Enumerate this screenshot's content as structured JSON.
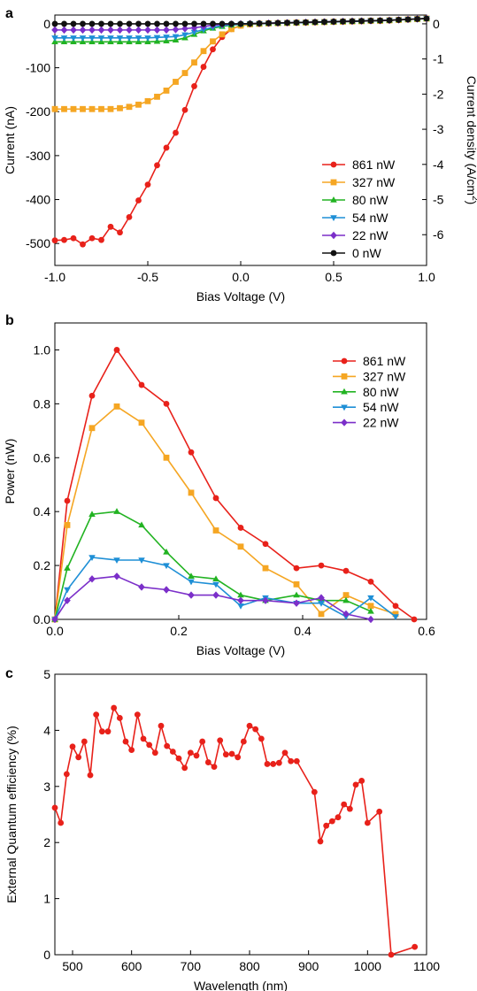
{
  "chart_data": [
    {
      "panel": "a",
      "type": "line",
      "xlabel": "Bias Voltage (V)",
      "ylabel": "Current (nA)",
      "y2label_main": "Current density (A/cm",
      "y2label_sup": "2",
      "y2label_end": ")",
      "xlim": [
        -1.0,
        1.0
      ],
      "ylim": [
        -550,
        20
      ],
      "xticks": [
        -1.0,
        -0.5,
        0.0,
        0.5,
        1.0
      ],
      "xtick_labels": [
        "-1.0",
        "-0.5",
        "0.0",
        "0.5",
        "1.0"
      ],
      "yticks": [
        0,
        -100,
        -200,
        -300,
        -400,
        -500
      ],
      "ytick_labels": [
        "0",
        "-100",
        "-200",
        "-300",
        "-400",
        "-500"
      ],
      "y2ticks": [
        0,
        -1,
        -2,
        -3,
        -4,
        -5,
        -6
      ],
      "y2tick_labels": [
        "0",
        "-1",
        "-2",
        "-3",
        "-4",
        "-5",
        "-6"
      ],
      "y2_scale_nA_per_unit": 80,
      "legend_position": "bottom-right",
      "x": [
        -1.0,
        -0.95,
        -0.9,
        -0.85,
        -0.8,
        -0.75,
        -0.7,
        -0.65,
        -0.6,
        -0.55,
        -0.5,
        -0.45,
        -0.4,
        -0.35,
        -0.3,
        -0.25,
        -0.2,
        -0.15,
        -0.1,
        -0.05,
        0.0,
        0.05,
        0.1,
        0.15,
        0.2,
        0.25,
        0.3,
        0.35,
        0.4,
        0.45,
        0.5,
        0.55,
        0.6,
        0.65,
        0.7,
        0.75,
        0.8,
        0.85,
        0.9,
        0.95,
        1.0
      ],
      "series": [
        {
          "name": "861 nW",
          "color": "#e8211a",
          "marker": "circle",
          "values": [
            -493,
            -492,
            -488,
            -502,
            -488,
            -492,
            -462,
            -475,
            -440,
            -402,
            -366,
            -322,
            -282,
            -248,
            -196,
            -142,
            -98,
            -58,
            -30,
            -12,
            -4,
            -1,
            0,
            1,
            1.5,
            2,
            2.5,
            3,
            3.5,
            4,
            4.5,
            5,
            5.5,
            6,
            7,
            7,
            8,
            9,
            10,
            11,
            12
          ]
        },
        {
          "name": "327 nW",
          "color": "#f5a623",
          "marker": "square",
          "values": [
            -194,
            -194,
            -194,
            -194,
            -194,
            -194,
            -194,
            -192,
            -189,
            -184,
            -176,
            -166,
            -152,
            -132,
            -112,
            -88,
            -62,
            -40,
            -24,
            -12,
            -4,
            -1,
            0,
            1,
            1.5,
            2,
            2.5,
            3,
            3.5,
            4,
            4.5,
            5,
            5.5,
            6,
            7,
            7,
            8,
            9,
            10,
            11,
            12
          ]
        },
        {
          "name": "80 nW",
          "color": "#22b322",
          "marker": "triangle-up",
          "values": [
            -41,
            -41,
            -41,
            -41,
            -41,
            -41,
            -41,
            -41,
            -41,
            -41,
            -41,
            -40,
            -39,
            -37,
            -32,
            -24,
            -16,
            -10,
            -6,
            -3,
            -1,
            0,
            0.5,
            1,
            1.5,
            2,
            2.5,
            3,
            3.5,
            4,
            4.5,
            5,
            5.5,
            6,
            7,
            7,
            8,
            9,
            10,
            11,
            12
          ]
        },
        {
          "name": "54 nW",
          "color": "#1e8fd6",
          "marker": "triangle-down",
          "values": [
            -32,
            -32,
            -32,
            -32,
            -32,
            -32,
            -32,
            -32,
            -32,
            -32,
            -32,
            -31,
            -30,
            -29,
            -25,
            -19,
            -13,
            -8,
            -4,
            -2,
            -1,
            0,
            0.5,
            1,
            1.5,
            2,
            2.5,
            3,
            3.5,
            4,
            4.5,
            5,
            5.5,
            6,
            7,
            7,
            8,
            9,
            10,
            11,
            12
          ]
        },
        {
          "name": "22 nW",
          "color": "#7b2fc9",
          "marker": "diamond",
          "values": [
            -14,
            -14,
            -14,
            -14,
            -14,
            -14,
            -14,
            -14,
            -14,
            -14,
            -14,
            -14,
            -14,
            -13,
            -11,
            -9,
            -6,
            -3,
            -1.5,
            -0.5,
            0,
            0.5,
            1,
            1.5,
            2,
            2.5,
            3,
            3.5,
            4,
            4.5,
            5,
            5.5,
            6,
            6.5,
            7,
            7.5,
            8,
            9,
            10,
            11,
            12
          ]
        },
        {
          "name": "0 nW",
          "color": "#111111",
          "marker": "circle",
          "values": [
            0,
            0,
            0,
            0,
            0,
            0,
            0,
            0,
            0,
            0,
            0,
            0,
            0,
            0,
            0,
            0,
            0,
            0,
            0,
            0,
            0,
            0.5,
            1,
            1.5,
            2,
            2.5,
            3,
            3.5,
            4,
            4.5,
            5,
            5.5,
            6,
            6.5,
            7,
            7.5,
            8,
            9,
            10,
            11,
            12
          ]
        }
      ]
    },
    {
      "panel": "b",
      "type": "line",
      "xlabel": "Bias Voltage (V)",
      "ylabel": "Power (nW)",
      "xlim": [
        0.0,
        0.6
      ],
      "ylim": [
        0.0,
        1.1
      ],
      "xticks": [
        0.0,
        0.2,
        0.4,
        0.6
      ],
      "xtick_labels": [
        "0.0",
        "0.2",
        "0.4",
        "0.6"
      ],
      "yticks": [
        0.0,
        0.2,
        0.4,
        0.6,
        0.8,
        1.0
      ],
      "ytick_labels": [
        "0.0",
        "0.2",
        "0.4",
        "0.6",
        "0.8",
        "1.0"
      ],
      "legend_position": "top-right",
      "series": [
        {
          "name": "861 nW",
          "color": "#e8211a",
          "marker": "circle",
          "x": [
            0.0,
            0.02,
            0.06,
            0.1,
            0.14,
            0.18,
            0.22,
            0.26,
            0.3,
            0.34,
            0.39,
            0.43,
            0.47,
            0.51,
            0.55,
            0.58
          ],
          "values": [
            0.0,
            0.44,
            0.83,
            1.0,
            0.87,
            0.8,
            0.62,
            0.45,
            0.34,
            0.28,
            0.19,
            0.2,
            0.18,
            0.14,
            0.05,
            0.0
          ]
        },
        {
          "name": "327 nW",
          "color": "#f5a623",
          "marker": "square",
          "x": [
            0.0,
            0.02,
            0.06,
            0.1,
            0.14,
            0.18,
            0.22,
            0.26,
            0.3,
            0.34,
            0.39,
            0.43,
            0.47,
            0.51,
            0.55
          ],
          "values": [
            0.0,
            0.35,
            0.71,
            0.79,
            0.73,
            0.6,
            0.47,
            0.33,
            0.27,
            0.19,
            0.13,
            0.02,
            0.09,
            0.05,
            0.02
          ]
        },
        {
          "name": "80 nW",
          "color": "#22b322",
          "marker": "triangle-up",
          "x": [
            0.0,
            0.02,
            0.06,
            0.1,
            0.14,
            0.18,
            0.22,
            0.26,
            0.3,
            0.34,
            0.39,
            0.43,
            0.47,
            0.51
          ],
          "values": [
            0.0,
            0.19,
            0.39,
            0.4,
            0.35,
            0.25,
            0.16,
            0.15,
            0.09,
            0.07,
            0.09,
            0.07,
            0.07,
            0.03
          ]
        },
        {
          "name": "54 nW",
          "color": "#1e8fd6",
          "marker": "triangle-down",
          "x": [
            0.0,
            0.02,
            0.06,
            0.1,
            0.14,
            0.18,
            0.22,
            0.26,
            0.3,
            0.34,
            0.39,
            0.43,
            0.47,
            0.51,
            0.55
          ],
          "values": [
            0.0,
            0.11,
            0.23,
            0.22,
            0.22,
            0.2,
            0.14,
            0.13,
            0.05,
            0.08,
            0.06,
            0.06,
            0.01,
            0.08,
            0.01
          ]
        },
        {
          "name": "22 nW",
          "color": "#7b2fc9",
          "marker": "diamond",
          "x": [
            0.0,
            0.02,
            0.06,
            0.1,
            0.14,
            0.18,
            0.22,
            0.26,
            0.3,
            0.34,
            0.39,
            0.43,
            0.47,
            0.51
          ],
          "values": [
            0.0,
            0.07,
            0.15,
            0.16,
            0.12,
            0.11,
            0.09,
            0.09,
            0.07,
            0.07,
            0.06,
            0.08,
            0.02,
            0.0
          ]
        }
      ]
    },
    {
      "panel": "c",
      "type": "line",
      "xlabel": "Wavelength (nm)",
      "ylabel": "External Quantum efficiency (%)",
      "xlim": [
        470,
        1100
      ],
      "ylim": [
        0,
        5
      ],
      "xticks": [
        500,
        600,
        700,
        800,
        900,
        1000,
        1100
      ],
      "xtick_labels": [
        "500",
        "600",
        "700",
        "800",
        "900",
        "1000",
        "1100"
      ],
      "yticks": [
        0,
        1,
        2,
        3,
        4,
        5
      ],
      "ytick_labels": [
        "0",
        "1",
        "2",
        "3",
        "4",
        "5"
      ],
      "series": [
        {
          "name": "",
          "color": "#e8211a",
          "marker": "circle",
          "x": [
            470,
            480,
            490,
            500,
            510,
            520,
            530,
            540,
            550,
            560,
            570,
            580,
            590,
            600,
            610,
            620,
            630,
            640,
            650,
            660,
            670,
            680,
            690,
            700,
            710,
            720,
            730,
            740,
            750,
            760,
            770,
            780,
            790,
            800,
            810,
            820,
            830,
            840,
            850,
            860,
            870,
            880,
            910,
            920,
            930,
            940,
            950,
            960,
            970,
            980,
            990,
            1000,
            1020,
            1040,
            1080
          ],
          "values": [
            2.62,
            2.35,
            3.22,
            3.71,
            3.52,
            3.8,
            3.2,
            4.28,
            3.98,
            3.98,
            4.4,
            4.22,
            3.8,
            3.65,
            4.28,
            3.85,
            3.74,
            3.6,
            4.08,
            3.72,
            3.62,
            3.5,
            3.33,
            3.6,
            3.55,
            3.8,
            3.43,
            3.35,
            3.82,
            3.57,
            3.58,
            3.52,
            3.8,
            4.08,
            4.02,
            3.85,
            3.4,
            3.4,
            3.42,
            3.6,
            3.45,
            3.45,
            2.9,
            2.02,
            2.3,
            2.38,
            2.45,
            2.68,
            2.6,
            3.03,
            3.1,
            2.35,
            2.55,
            0.0,
            0.14
          ]
        }
      ]
    }
  ],
  "panels": {
    "a": {
      "label": "a"
    },
    "b": {
      "label": "b"
    },
    "c": {
      "label": "c"
    }
  }
}
